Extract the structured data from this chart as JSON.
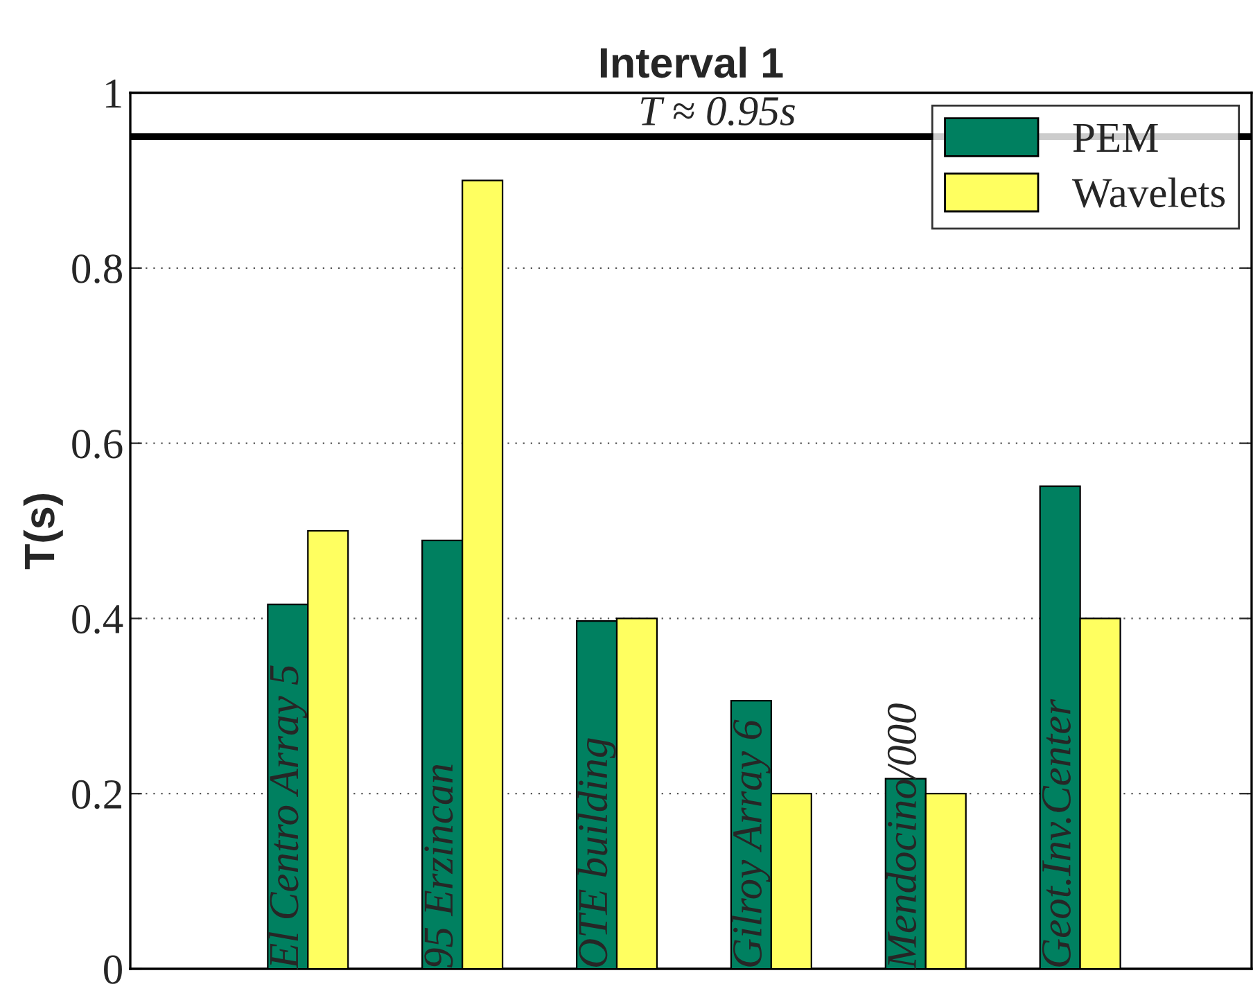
{
  "chart_data": {
    "type": "bar",
    "title": "Interval 1",
    "ylabel": "T(s)",
    "categories": [
      "El Centro Array 5",
      "95 Erzincan",
      "OTE building",
      "Gilroy Array 6",
      "Mendocino/000",
      "Geot.Inv.Center"
    ],
    "series": [
      {
        "name": "PEM",
        "color": "#008060",
        "values": [
          0.416,
          0.489,
          0.397,
          0.306,
          0.217,
          0.551
        ]
      },
      {
        "name": "Wavelets",
        "color": "#ffff60",
        "values": [
          0.5,
          0.9,
          0.4,
          0.2,
          0.2,
          0.4
        ]
      }
    ],
    "ylim": [
      0,
      1
    ],
    "yticks": [
      0,
      0.2,
      0.4,
      0.6,
      0.8,
      1
    ],
    "ref_lines": [
      {
        "axis": "y",
        "value": 0.95,
        "label": "T ≈ 0.95s",
        "color": "#000000"
      }
    ],
    "grid": "y",
    "legend": "top right",
    "tick_labels": "y"
  }
}
